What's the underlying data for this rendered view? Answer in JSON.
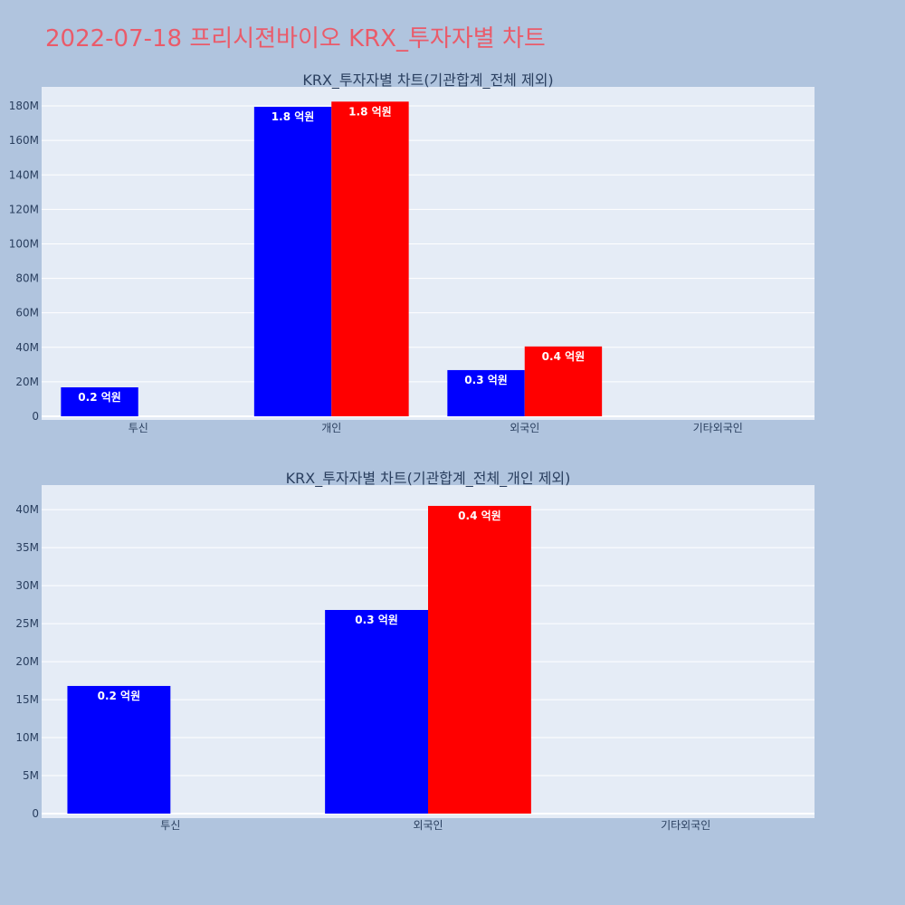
{
  "page": {
    "title": "2022-07-18 프리시젼바이오 KRX_투자자별 차트"
  },
  "colors": {
    "background": "#b0c4de",
    "plot_bg": "#e5ecf6",
    "grid": "#ffffff",
    "title": "#ea5b6a",
    "text": "#2a3f5f",
    "series_a": "#0000ff",
    "series_b": "#ff0000"
  },
  "chart_data": [
    {
      "type": "bar",
      "title": "KRX_투자자별 차트(기관합계_전체 제외)",
      "categories": [
        "투신",
        "개인",
        "외국인",
        "기타외국인"
      ],
      "series": [
        {
          "color": "#0000ff",
          "values": [
            16800000,
            179500000,
            26800000,
            0
          ],
          "labels": [
            "0.2 억원",
            "1.8 억원",
            "0.3 억원",
            ""
          ]
        },
        {
          "color": "#ff0000",
          "values": [
            0,
            182500000,
            40500000,
            0
          ],
          "labels": [
            "",
            "1.8 억원",
            "0.4 억원",
            ""
          ]
        }
      ],
      "ylim": [
        0,
        190000000
      ],
      "yticks": [
        0,
        20000000,
        40000000,
        60000000,
        80000000,
        100000000,
        120000000,
        140000000,
        160000000,
        180000000
      ],
      "ytick_labels": [
        "0",
        "20M",
        "40M",
        "60M",
        "80M",
        "100M",
        "120M",
        "140M",
        "160M",
        "180M"
      ],
      "grid": true,
      "legend": "none"
    },
    {
      "type": "bar",
      "title": "KRX_투자자별 차트(기관합계_전체_개인 제외)",
      "categories": [
        "투신",
        "외국인",
        "기타외국인"
      ],
      "series": [
        {
          "color": "#0000ff",
          "values": [
            16800000,
            26800000,
            0
          ],
          "labels": [
            "0.2 억원",
            "0.3 억원",
            ""
          ]
        },
        {
          "color": "#ff0000",
          "values": [
            0,
            40500000,
            0
          ],
          "labels": [
            "",
            "0.4 억원",
            ""
          ]
        }
      ],
      "ylim": [
        0,
        43000000
      ],
      "yticks": [
        0,
        5000000,
        10000000,
        15000000,
        20000000,
        25000000,
        30000000,
        35000000,
        40000000
      ],
      "ytick_labels": [
        "0",
        "5M",
        "10M",
        "15M",
        "20M",
        "25M",
        "30M",
        "35M",
        "40M"
      ],
      "grid": true,
      "legend": "none"
    }
  ]
}
